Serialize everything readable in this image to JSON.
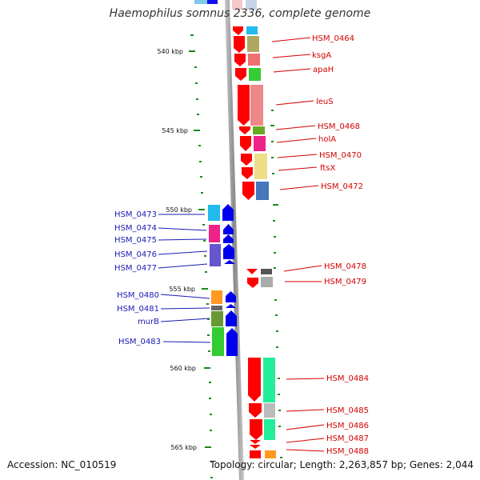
{
  "title": "Haemophilus somnus 2336, complete genome",
  "accession": "Accession: NC_010519",
  "topology": "Topology: circular; Length: 2,263,857 bp; Genes: 2,044",
  "axis": {
    "ticks": [
      {
        "label": "540 kbp"
      },
      {
        "label": "545 kbp"
      },
      {
        "label": "550 kbp"
      },
      {
        "label": "555 kbp"
      },
      {
        "label": "560 kbp"
      },
      {
        "label": "565 kbp"
      }
    ]
  },
  "genes_right": [
    {
      "label": "HSM_0464"
    },
    {
      "label": "ksgA"
    },
    {
      "label": "apaH"
    },
    {
      "label": "leuS"
    },
    {
      "label": "HSM_0468"
    },
    {
      "label": "holA"
    },
    {
      "label": "HSM_0470"
    },
    {
      "label": "ftsX"
    },
    {
      "label": "HSM_0472"
    },
    {
      "label": "HSM_0478"
    },
    {
      "label": "HSM_0479"
    },
    {
      "label": "HSM_0484"
    },
    {
      "label": "HSM_0485"
    },
    {
      "label": "HSM_0486"
    },
    {
      "label": "HSM_0487"
    },
    {
      "label": "HSM_0488"
    }
  ],
  "genes_left": [
    {
      "label": "HSM_0473"
    },
    {
      "label": "HSM_0474"
    },
    {
      "label": "HSM_0475"
    },
    {
      "label": "HSM_0476"
    },
    {
      "label": "HSM_0477"
    },
    {
      "label": "HSM_0480"
    },
    {
      "label": "HSM_0481"
    },
    {
      "label": "murB"
    },
    {
      "label": "HSM_0483"
    }
  ],
  "colors": {
    "forward_strand": "#ff0000",
    "reverse_strand": "#0000ee",
    "right_label": "#d40000",
    "left_label": "#1a1ab4",
    "backbone": "#999999",
    "tick": "#1a8a1a"
  }
}
